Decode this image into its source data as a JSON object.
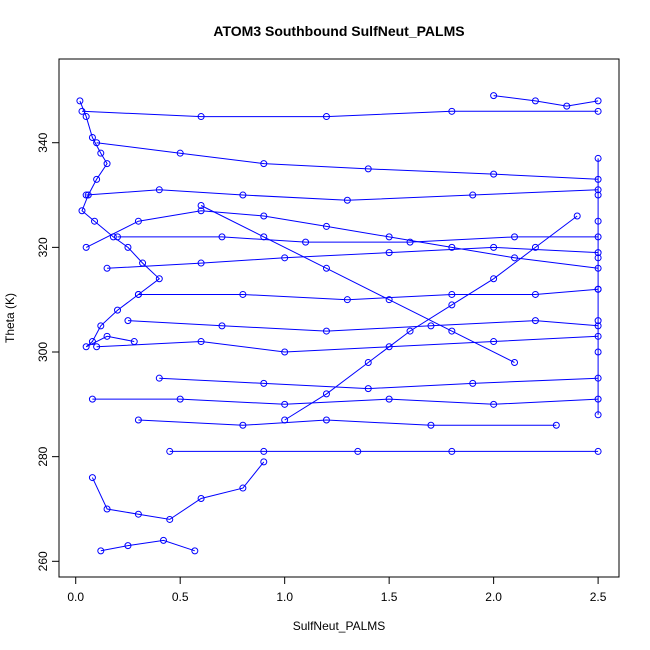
{
  "chart_data": {
    "type": "line",
    "title": "ATOM3 Southbound SulfNeut_PALMS",
    "xlabel": "SulfNeut_PALMS",
    "ylabel": "Theta (K)",
    "xlim": [
      -0.08,
      2.6
    ],
    "ylim": [
      257,
      356
    ],
    "xticks": [
      "0.0",
      "0.5",
      "1.0",
      "1.5",
      "2.0",
      "2.5"
    ],
    "xtick_values": [
      0.0,
      0.5,
      1.0,
      1.5,
      2.0,
      2.5
    ],
    "yticks": [
      "260",
      "280",
      "300",
      "320",
      "340"
    ],
    "ytick_values": [
      260,
      280,
      300,
      320,
      340
    ],
    "series_color": "#0000ff",
    "grid": false,
    "legend": "none",
    "series": [
      {
        "x": [
          0.02,
          0.05,
          0.08,
          0.12,
          0.15,
          0.1,
          0.06,
          0.03,
          0.09,
          0.18,
          0.25,
          0.32,
          0.4,
          0.3,
          0.2,
          0.12,
          0.08,
          0.05,
          0.15,
          0.28
        ],
        "y": [
          348,
          345,
          341,
          338,
          336,
          333,
          330,
          327,
          325,
          322,
          320,
          317,
          314,
          311,
          308,
          305,
          302,
          301,
          303,
          302
        ]
      },
      {
        "x": [
          0.03,
          0.6,
          1.2,
          1.8,
          2.5
        ],
        "y": [
          346,
          345,
          345,
          346,
          346
        ]
      },
      {
        "x": [
          0.1,
          0.5,
          0.9,
          1.4,
          2.0,
          2.5
        ],
        "y": [
          340,
          338,
          336,
          335,
          334,
          333
        ]
      },
      {
        "x": [
          0.05,
          0.4,
          0.8,
          1.3,
          1.9,
          2.5
        ],
        "y": [
          330,
          331,
          330,
          329,
          330,
          331
        ]
      },
      {
        "x": [
          0.2,
          0.7,
          1.1,
          1.6,
          2.1,
          2.5
        ],
        "y": [
          322,
          322,
          321,
          321,
          322,
          322
        ]
      },
      {
        "x": [
          0.15,
          0.6,
          1.0,
          1.5,
          2.0,
          2.5
        ],
        "y": [
          316,
          317,
          318,
          319,
          320,
          319
        ]
      },
      {
        "x": [
          0.3,
          0.8,
          1.3,
          1.8,
          2.2,
          2.5
        ],
        "y": [
          311,
          311,
          310,
          311,
          311,
          312
        ]
      },
      {
        "x": [
          0.25,
          0.7,
          1.2,
          1.7,
          2.2,
          2.5
        ],
        "y": [
          306,
          305,
          304,
          305,
          306,
          305
        ]
      },
      {
        "x": [
          0.1,
          0.6,
          1.0,
          1.5,
          2.0,
          2.5
        ],
        "y": [
          301,
          302,
          300,
          301,
          302,
          303
        ]
      },
      {
        "x": [
          0.4,
          0.9,
          1.4,
          1.9,
          2.5
        ],
        "y": [
          295,
          294,
          293,
          294,
          295
        ]
      },
      {
        "x": [
          0.08,
          0.5,
          1.0,
          1.5,
          2.0,
          2.5
        ],
        "y": [
          291,
          291,
          290,
          291,
          290,
          291
        ]
      },
      {
        "x": [
          0.3,
          0.8,
          1.2,
          1.7,
          2.3
        ],
        "y": [
          287,
          286,
          287,
          286,
          286
        ]
      },
      {
        "x": [
          0.45,
          0.9,
          1.35,
          1.8,
          2.5
        ],
        "y": [
          281,
          281,
          281,
          281,
          281
        ]
      },
      {
        "x": [
          0.08,
          0.15,
          0.3,
          0.45,
          0.6,
          0.8,
          0.9
        ],
        "y": [
          276,
          270,
          269,
          268,
          272,
          274,
          279
        ]
      },
      {
        "x": [
          0.12,
          0.25,
          0.42,
          0.57
        ],
        "y": [
          262,
          263,
          264,
          262
        ]
      },
      {
        "x": [
          2.0,
          2.2,
          2.35,
          2.5
        ],
        "y": [
          349,
          348,
          347,
          348
        ]
      },
      {
        "x": [
          2.5,
          2.5,
          2.5,
          2.5,
          2.5,
          2.5,
          2.5,
          2.5
        ],
        "y": [
          337,
          330,
          325,
          318,
          312,
          306,
          300,
          288
        ]
      },
      {
        "x": [
          1.0,
          1.2,
          1.4,
          1.6,
          1.8,
          2.0,
          2.2,
          2.4
        ],
        "y": [
          287,
          292,
          298,
          304,
          309,
          314,
          320,
          326
        ]
      },
      {
        "x": [
          0.6,
          0.9,
          1.2,
          1.5,
          1.8,
          2.1
        ],
        "y": [
          328,
          322,
          316,
          310,
          304,
          298
        ]
      },
      {
        "x": [
          0.05,
          0.3,
          0.6,
          0.9,
          1.2,
          1.5,
          1.8,
          2.1,
          2.5
        ],
        "y": [
          320,
          325,
          327,
          326,
          324,
          322,
          320,
          318,
          316
        ]
      }
    ]
  }
}
